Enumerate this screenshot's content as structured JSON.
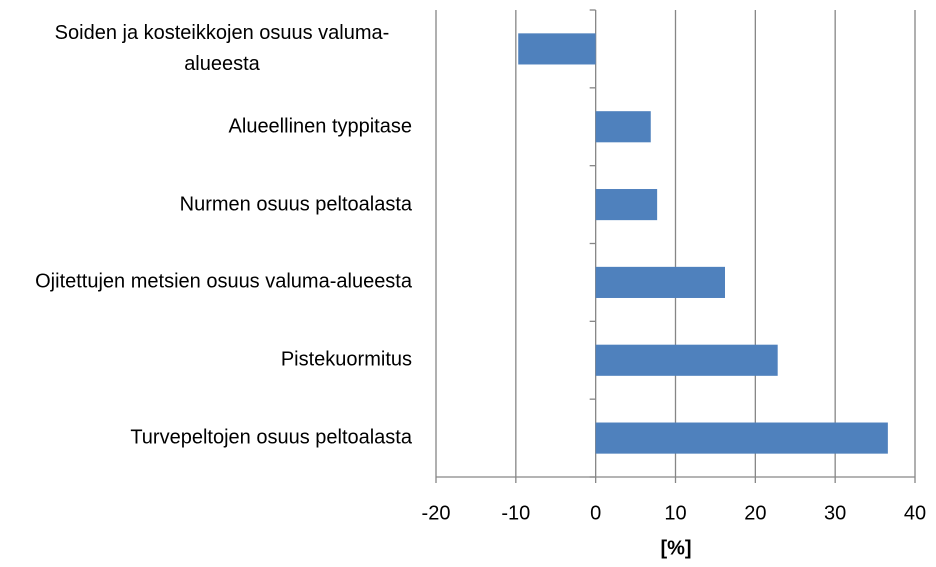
{
  "chart_data": {
    "type": "barh",
    "categories": [
      "Soiden ja kosteikkojen osuus valuma-alueesta",
      "Alueellinen typpitase",
      "Nurmen osuus peltoalasta",
      "Ojitettujen metsien osuus valuma-alueesta",
      "Pistekuormitus",
      "Turvepeltojen osuus peltoalasta"
    ],
    "values": [
      -9.7,
      6.9,
      7.7,
      16.2,
      22.8,
      36.6
    ],
    "color": "#4f81bd",
    "x_label": "[%]",
    "xlim": [
      -20,
      40
    ],
    "xticks": [
      -20,
      -10,
      0,
      10,
      20,
      30,
      40
    ],
    "grid": true
  }
}
